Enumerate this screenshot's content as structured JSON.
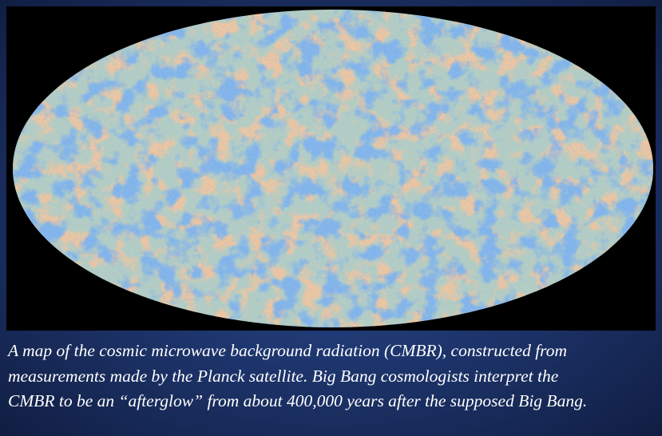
{
  "caption": {
    "lines": [
      "A map of the cosmic microwave background radiation (CMBR), constructed from",
      "measurements made by the Planck satellite. Big Bang cosmologists interpret the",
      "CMBR to be an “afterglow” from about 400,000 years after the supposed Big Bang."
    ]
  }
}
